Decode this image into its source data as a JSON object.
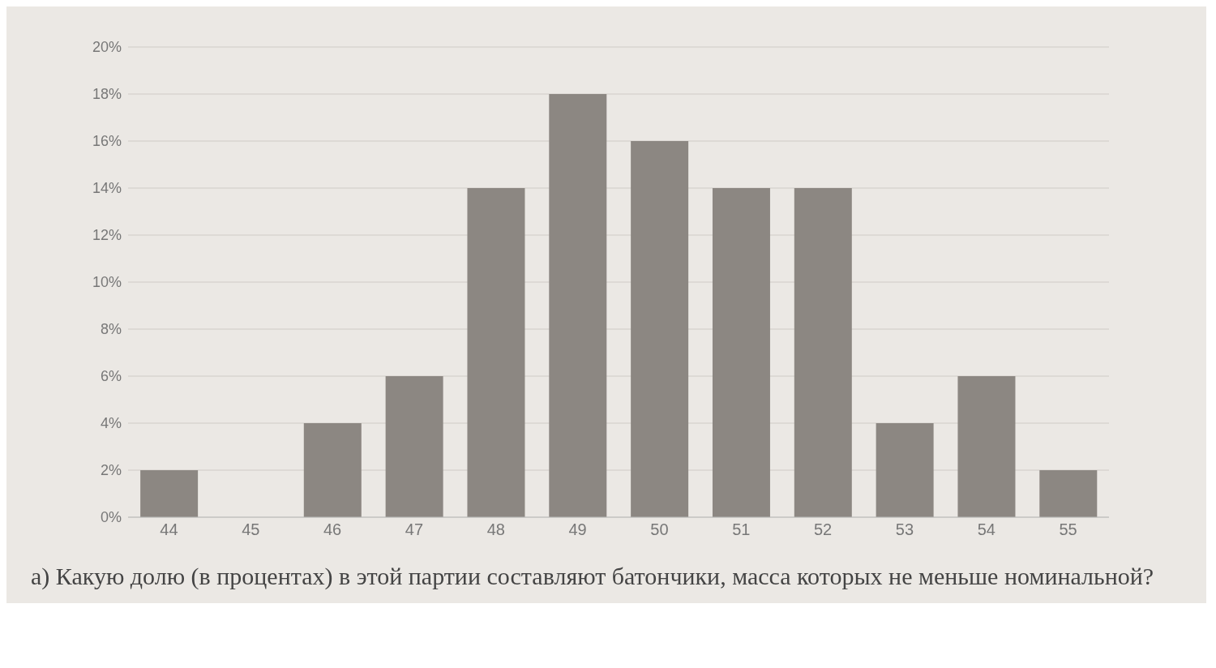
{
  "chart_data": {
    "type": "bar",
    "categories": [
      "44",
      "45",
      "46",
      "47",
      "48",
      "49",
      "50",
      "51",
      "52",
      "53",
      "54",
      "55"
    ],
    "values": [
      2,
      0,
      4,
      6,
      14,
      18,
      16,
      14,
      14,
      4,
      6,
      2
    ],
    "color": "#8c8782",
    "ylim": [
      0,
      20
    ],
    "yticks": [
      {
        "value": 0,
        "label": "0%"
      },
      {
        "value": 2,
        "label": "2%"
      },
      {
        "value": 4,
        "label": "4%"
      },
      {
        "value": 6,
        "label": "6%"
      },
      {
        "value": 8,
        "label": "8%"
      },
      {
        "value": 10,
        "label": "10%"
      },
      {
        "value": 12,
        "label": "12%"
      },
      {
        "value": 14,
        "label": "14%"
      },
      {
        "value": 16,
        "label": "16%"
      },
      {
        "value": 18,
        "label": "18%"
      },
      {
        "value": 20,
        "label": "20%"
      }
    ],
    "grid": "y",
    "annotations": [
      "а) Какую долю (в процентах) в этой партии составляют батончики, масса которых не меньше номинальной?"
    ]
  }
}
